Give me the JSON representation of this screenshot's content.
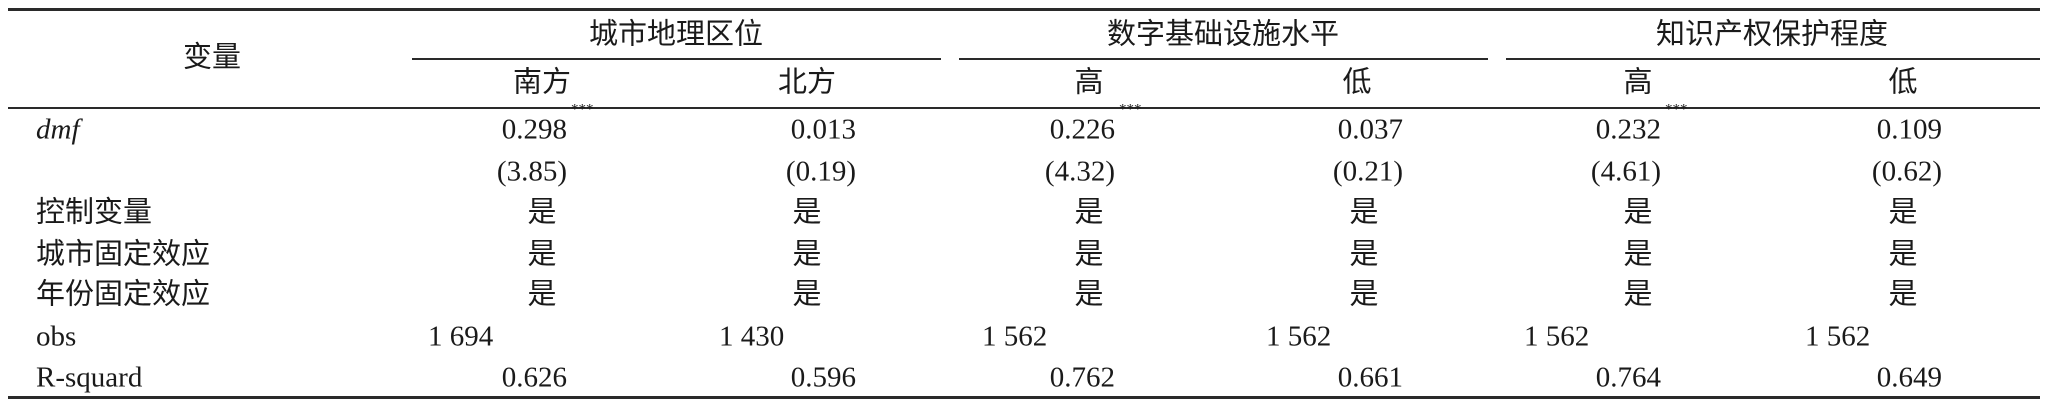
{
  "header": {
    "variable_label": "变量",
    "groups": [
      {
        "label": "城市地理区位",
        "subs": [
          "南方",
          "北方"
        ]
      },
      {
        "label": "数字基础设施水平",
        "subs": [
          "高",
          "低"
        ]
      },
      {
        "label": "知识产权保护程度",
        "subs": [
          "高",
          "低"
        ]
      }
    ]
  },
  "rows": {
    "dmf": {
      "label": "dmf",
      "values": [
        "0.298",
        "0.013",
        "0.226",
        "0.037",
        "0.232",
        "0.109"
      ],
      "stars": [
        "***",
        "",
        "***",
        "",
        "***",
        ""
      ]
    },
    "tstat": {
      "values": [
        "(3.85)",
        "(0.19)",
        "(4.32)",
        "(0.21)",
        "(4.61)",
        "(0.62)"
      ]
    },
    "controls": {
      "label": "控制变量",
      "values": [
        "是",
        "是",
        "是",
        "是",
        "是",
        "是"
      ]
    },
    "city_fe": {
      "label": "城市固定效应",
      "values": [
        "是",
        "是",
        "是",
        "是",
        "是",
        "是"
      ]
    },
    "year_fe": {
      "label": "年份固定效应",
      "values": [
        "是",
        "是",
        "是",
        "是",
        "是",
        "是"
      ]
    },
    "obs": {
      "label": "obs",
      "values": [
        "1 694",
        "1 430",
        "1 562",
        "1 562",
        "1 562",
        "1 562"
      ]
    },
    "r2": {
      "label": "R-squard",
      "values": [
        "0.626",
        "0.596",
        "0.762",
        "0.661",
        "0.764",
        "0.649"
      ]
    }
  }
}
